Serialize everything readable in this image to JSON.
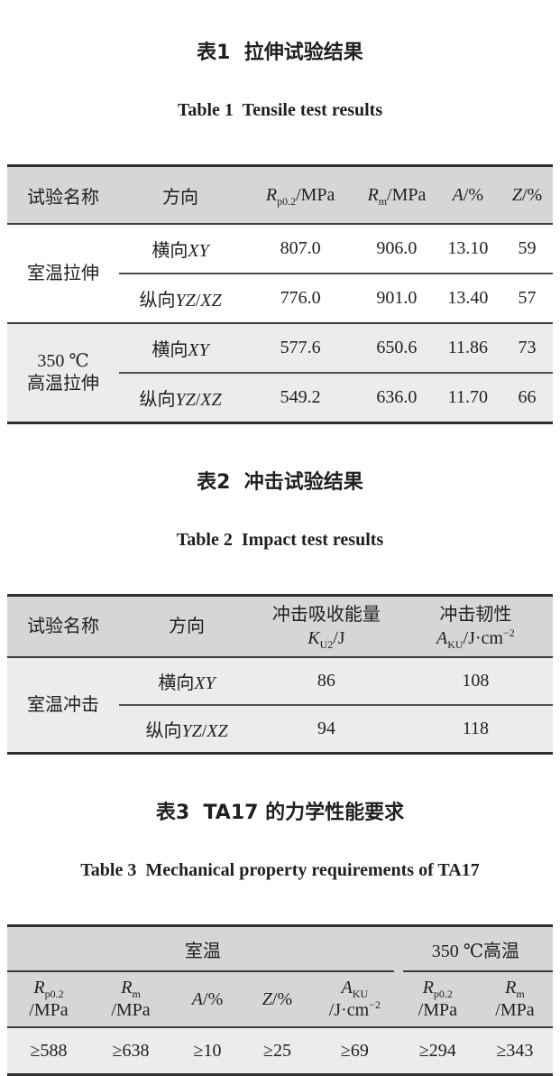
{
  "colors": {
    "header_bg": "#d6d6d6",
    "shaded_row_bg": "#ececec",
    "thick_rule": "#2e2e2e",
    "thin_rule": "#3a3a3a",
    "text": "#1f1f1f"
  },
  "table1": {
    "caption_zh": "表1  拉伸试验结果",
    "caption_en": "Table 1  Tensile test results",
    "headers_html": [
      "试验名称",
      "方向",
      "<i>R</i><sub>p0.2</sub>/MPa",
      "<i>R</i><sub>m</sub>/MPa",
      "<i>A</i>/%",
      "<i>Z</i>/%"
    ],
    "groups": [
      {
        "name_html": "室温拉伸",
        "rows": [
          {
            "direction_html": "横向<i>XY</i>",
            "values": [
              "807.0",
              "906.0",
              "13.10",
              "59"
            ]
          },
          {
            "direction_html": "纵向<i>YZ</i>/<i>XZ</i>",
            "values": [
              "776.0",
              "901.0",
              "13.40",
              "57"
            ]
          }
        ]
      },
      {
        "name_html": "350 ℃<br>高温拉伸",
        "rows": [
          {
            "direction_html": "横向<i>XY</i>",
            "values": [
              "577.6",
              "650.6",
              "11.86",
              "73"
            ]
          },
          {
            "direction_html": "纵向<i>YZ</i>/<i>XZ</i>",
            "values": [
              "549.2",
              "636.0",
              "11.70",
              "66"
            ]
          }
        ]
      }
    ]
  },
  "table2": {
    "caption_zh": "表2  冲击试验结果",
    "caption_en": "Table 2  Impact test results",
    "headers_html": [
      "试验名称",
      "方向",
      "冲击吸收能量<br><i>K</i><sub>U2</sub>/J",
      "冲击韧性<br><i>A</i><sub>KU</sub>/J·cm<sup>−2</sup>"
    ],
    "groups": [
      {
        "name_html": "室温冲击",
        "rows": [
          {
            "direction_html": "横向<i>XY</i>",
            "values": [
              "86",
              "108"
            ]
          },
          {
            "direction_html": "纵向<i>YZ</i>/<i>XZ</i>",
            "values": [
              "94",
              "118"
            ]
          }
        ]
      }
    ]
  },
  "table3": {
    "caption_zh": "表3  TA17 的力学性能要求",
    "caption_en": "Table 3  Mechanical property requirements of TA17",
    "span_headers": [
      "室温",
      "350 ℃高温"
    ],
    "headers_html": [
      "<i>R</i><sub>p0.2</sub><br>/MPa",
      "<i>R</i><sub>m</sub><br>/MPa",
      "<i>A</i>/%",
      "<i>Z</i>/%",
      "<i>A</i><sub>KU</sub><br>/J·cm<sup>−2</sup>",
      "<i>R</i><sub>p0.2</sub><br>/MPa",
      "<i>R</i><sub>m</sub><br>/MPa"
    ],
    "values": [
      "≥588",
      "≥638",
      "≥10",
      "≥25",
      "≥69",
      "≥294",
      "≥343"
    ]
  }
}
